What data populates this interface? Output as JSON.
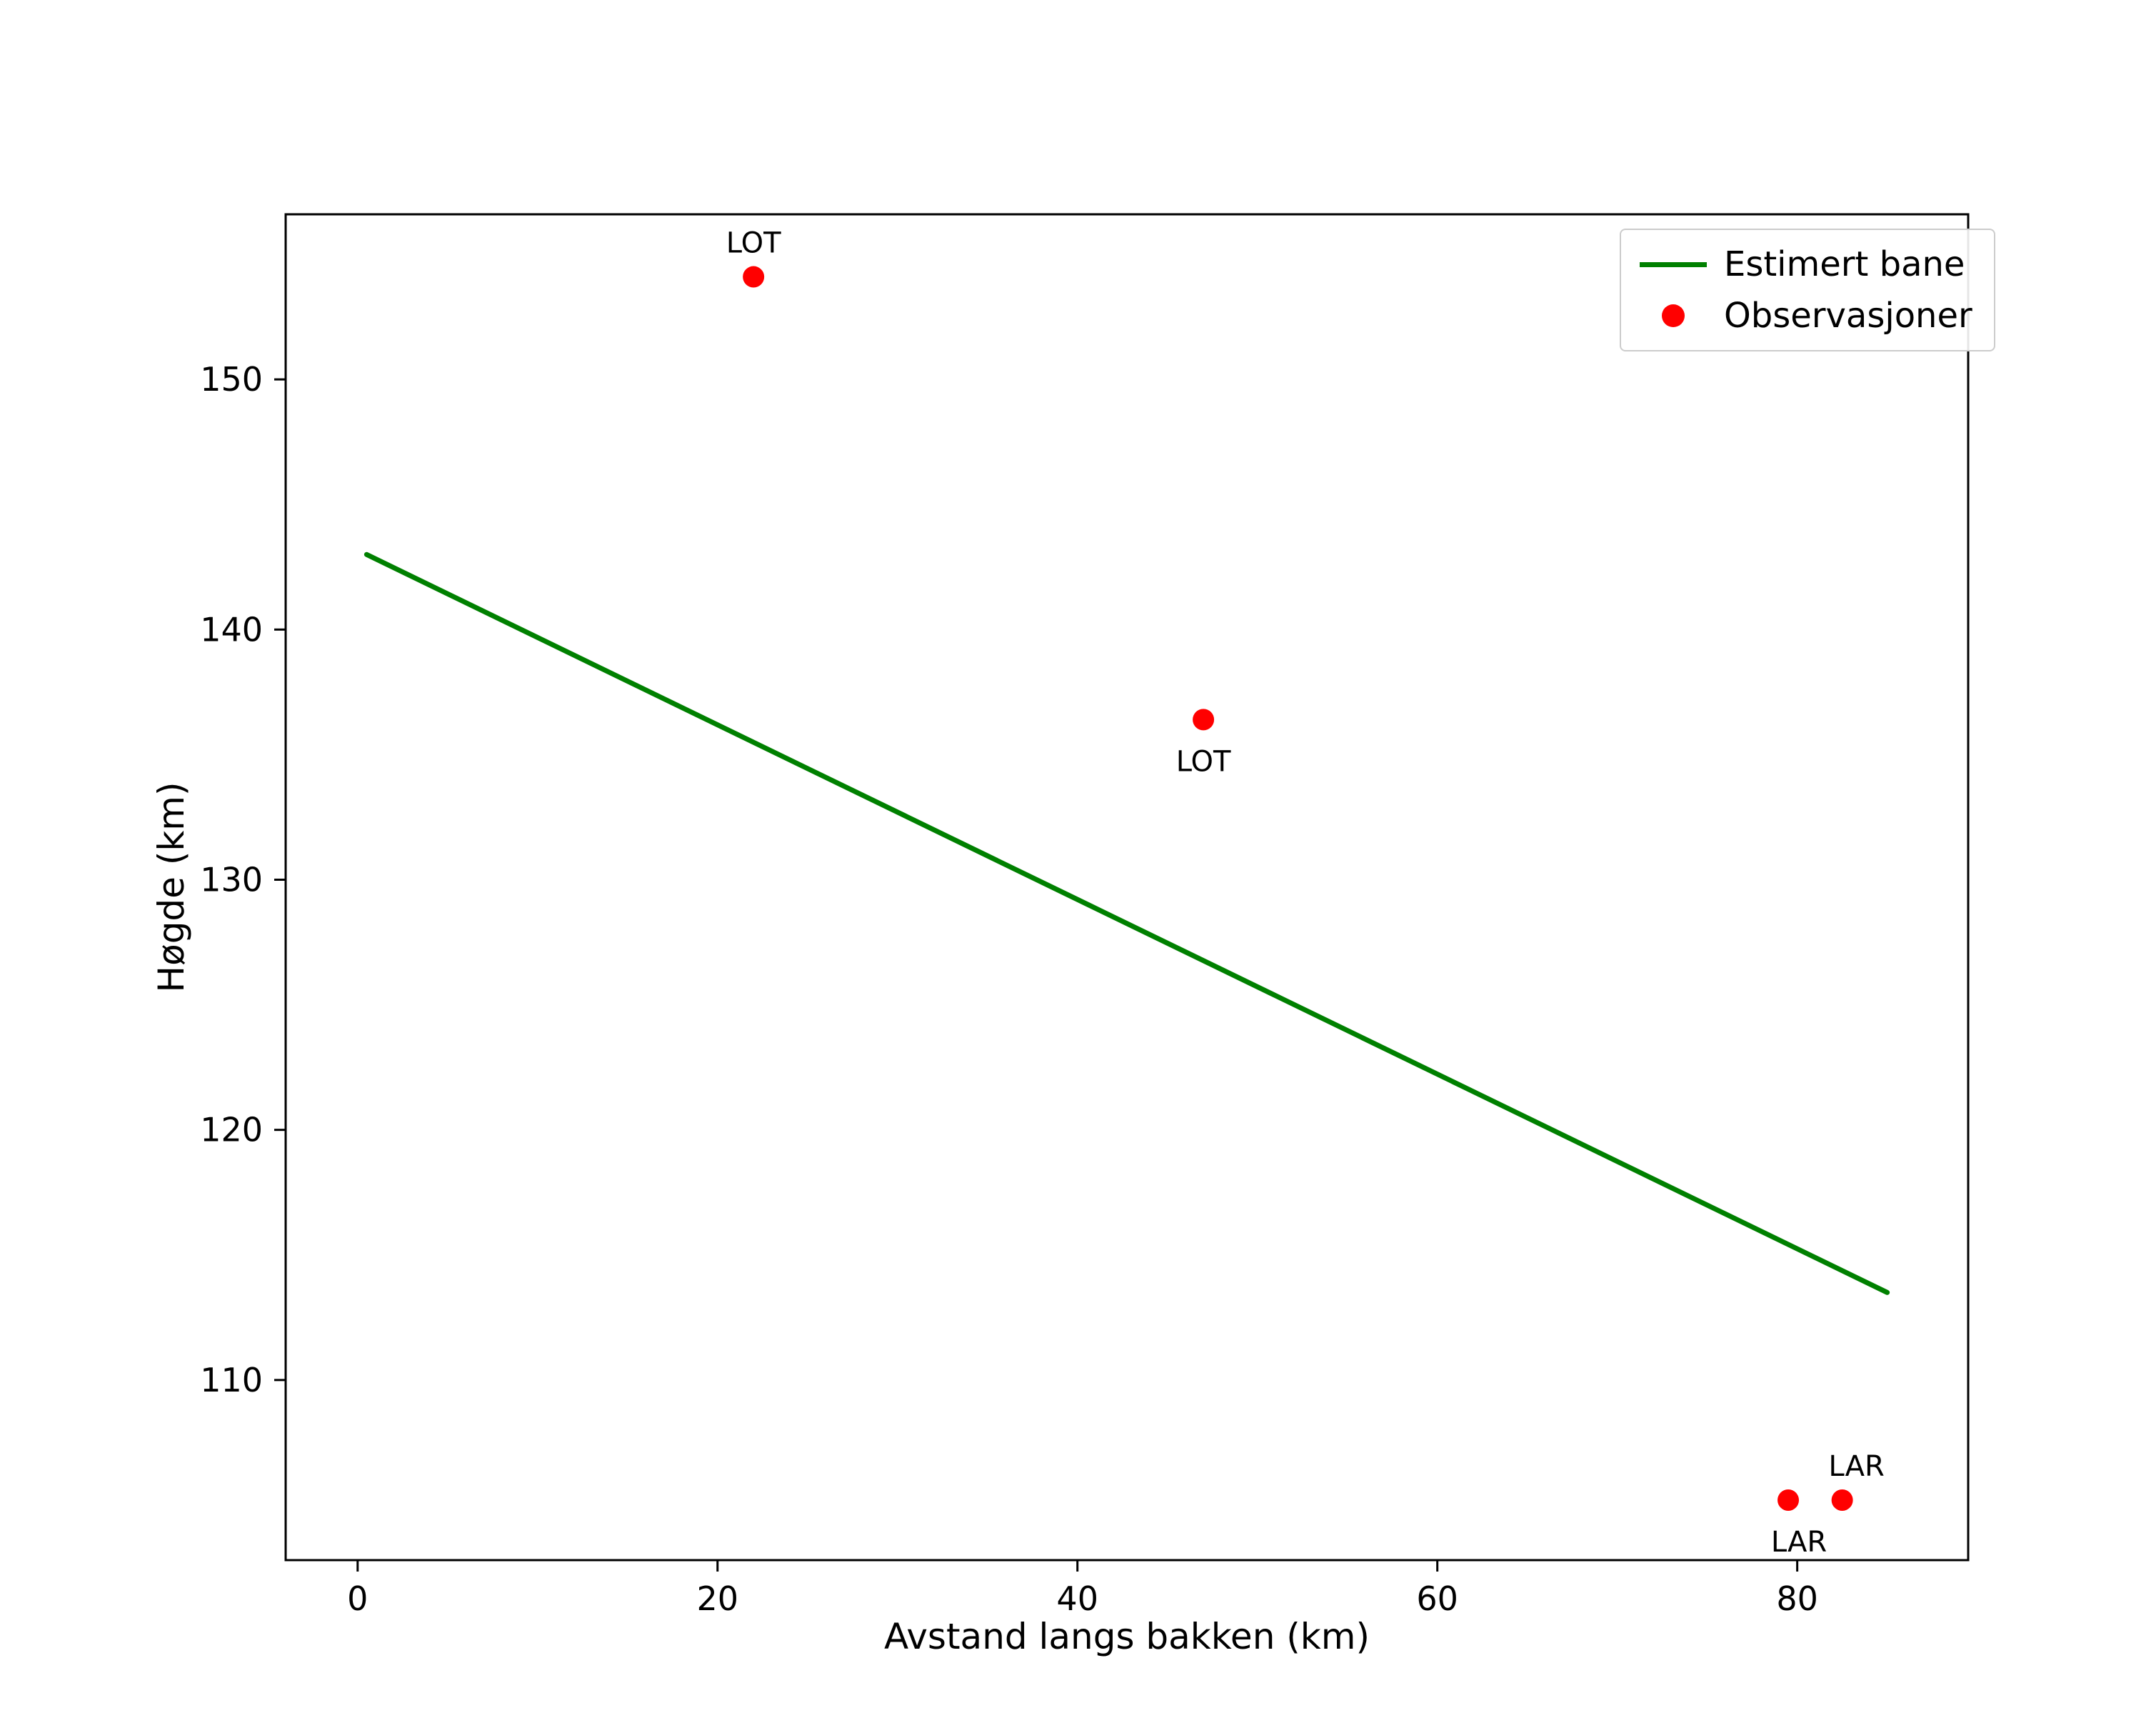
{
  "chart_data": {
    "type": "line+scatter",
    "title": "",
    "xlabel": "Avstand langs bakken (km)",
    "ylabel": "Høgde (km)",
    "xlim": [
      -4,
      89.5
    ],
    "ylim": [
      102.8,
      156.6
    ],
    "xticks": [
      0,
      20,
      40,
      60,
      80
    ],
    "yticks": [
      110,
      120,
      130,
      140,
      150
    ],
    "grid": false,
    "line_series": {
      "name": "Estimert bane",
      "color": "#008000",
      "points": [
        [
          0.5,
          143.0
        ],
        [
          85.0,
          113.5
        ]
      ]
    },
    "scatter_series": {
      "name": "Observasjoner",
      "color": "#ff0000",
      "points": [
        {
          "x": 22.0,
          "y": 154.1,
          "label": "LOT",
          "label_pos": "above",
          "label_dx": 0
        },
        {
          "x": 47.0,
          "y": 136.4,
          "label": "LOT",
          "label_pos": "below",
          "label_dx": 0
        },
        {
          "x": 79.5,
          "y": 105.2,
          "label": "LAR",
          "label_pos": "below",
          "label_dx": 15
        },
        {
          "x": 82.5,
          "y": 105.2,
          "label": "LAR",
          "label_pos": "above",
          "label_dx": 20
        }
      ]
    },
    "legend": {
      "position": "upper right",
      "entries": [
        {
          "label": "Estimert bane",
          "marker": "line",
          "color": "#008000"
        },
        {
          "label": "Observasjoner",
          "marker": "dot",
          "color": "#ff0000"
        }
      ]
    }
  }
}
